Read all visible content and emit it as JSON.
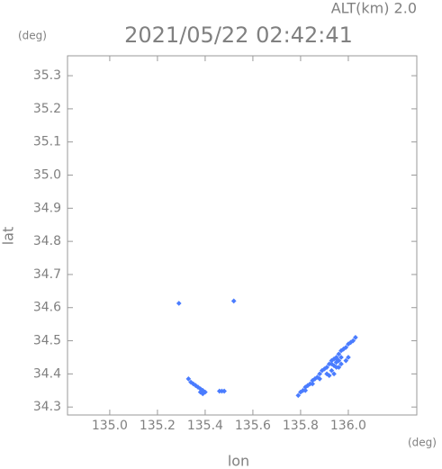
{
  "chart_data": {
    "type": "scatter",
    "title": "2021/05/22 02:42:41",
    "subtitle": "ALT(km) 2.0",
    "y_unit": "(deg)",
    "x_unit": "(deg)",
    "y_label": "lat",
    "x_label": "lon",
    "color": "#4a7cff",
    "xlim": [
      134.823,
      136.287
    ],
    "ylim": [
      34.276,
      35.36
    ],
    "xticks": [
      {
        "value": 135.0,
        "label": "135.0"
      },
      135.2,
      135.4,
      135.6,
      135.8,
      {
        "value": 136.0,
        "label": "136.0"
      }
    ],
    "yticks": [
      35.3,
      35.2,
      35.1,
      {
        "value": 35.0,
        "label": "35.0"
      },
      34.9,
      34.8,
      34.7,
      34.6,
      34.5,
      34.4,
      34.3
    ],
    "x": [
      135.29,
      135.52,
      135.33,
      135.34,
      135.35,
      135.36,
      135.37,
      135.38,
      135.39,
      135.38,
      135.4,
      135.39,
      135.46,
      135.47,
      135.48,
      135.79,
      135.8,
      135.81,
      135.82,
      135.83,
      135.84,
      135.85,
      135.86,
      135.87,
      135.88,
      135.89,
      135.9,
      135.91,
      135.92,
      135.93,
      135.94,
      135.95,
      135.96,
      135.97,
      135.98,
      135.99,
      136.0,
      136.01,
      136.02,
      136.03,
      135.82,
      135.85,
      135.88,
      135.91,
      135.93,
      135.95,
      135.97,
      135.99,
      136.0,
      135.93,
      135.94,
      135.95,
      135.96,
      135.95,
      135.97,
      135.94,
      135.92,
      135.96
    ],
    "y": [
      34.613,
      34.62,
      34.385,
      34.375,
      34.37,
      34.365,
      34.36,
      34.355,
      34.35,
      34.345,
      34.345,
      34.34,
      34.348,
      34.348,
      34.348,
      34.335,
      34.345,
      34.35,
      34.36,
      34.365,
      34.37,
      34.38,
      34.385,
      34.39,
      34.4,
      34.41,
      34.415,
      34.42,
      34.43,
      34.44,
      34.445,
      34.45,
      34.46,
      34.47,
      34.475,
      34.48,
      34.49,
      34.495,
      34.5,
      34.51,
      34.35,
      34.37,
      34.385,
      34.4,
      34.41,
      34.42,
      34.43,
      34.44,
      34.45,
      34.43,
      34.425,
      34.435,
      34.44,
      34.445,
      34.45,
      34.4,
      34.395,
      34.42
    ]
  }
}
